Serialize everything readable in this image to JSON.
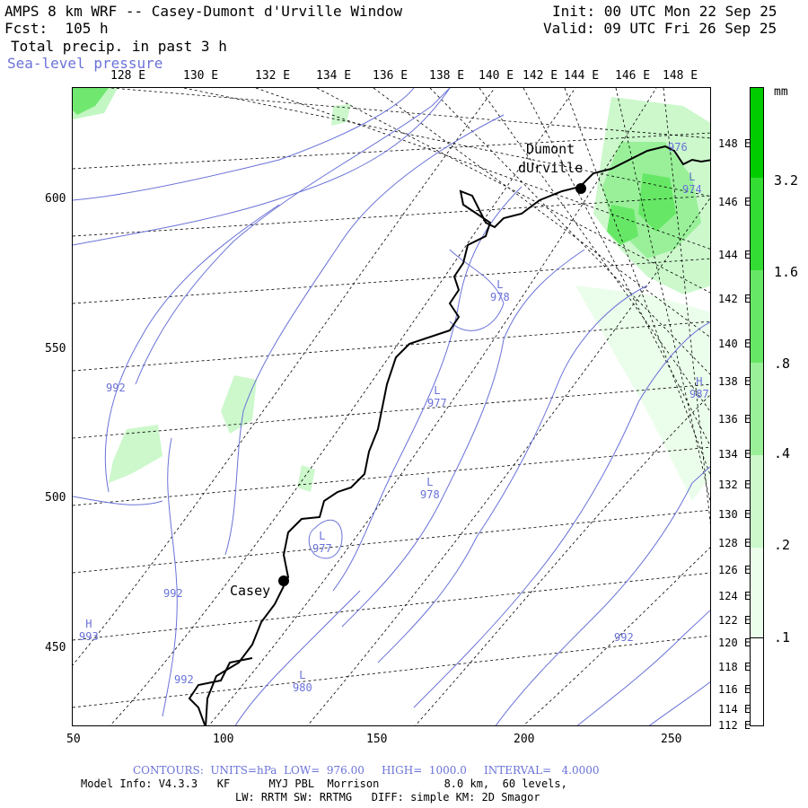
{
  "header": {
    "title": "AMPS 8 km WRF -- Casey-Dumont d'Urville Window",
    "forecast": "Fcst:  105 h",
    "field": "Total precip. in past 3 h",
    "contour_field": "Sea-level pressure",
    "init": "Init: 00 UTC Mon 22 Sep 25",
    "valid": "Valid: 09 UTC Fri 26 Sep 25"
  },
  "top_lon_labels": [
    "128 E",
    "130 E",
    "132 E",
    "134 E",
    "136 E",
    "138 E",
    "140 E",
    "142 E",
    "144 E",
    "146 E",
    "148 E"
  ],
  "right_lon_labels": [
    "148 E",
    "146 E",
    "144 E",
    "142 E",
    "140 E",
    "138 E",
    "136 E",
    "134 E",
    "132 E",
    "130 E",
    "128 E",
    "126 E",
    "124 E",
    "122 E",
    "120 E",
    "118 E",
    "116 E",
    "114 E",
    "112 E"
  ],
  "x_axis_labels": [
    "50",
    "100",
    "150",
    "200",
    "250"
  ],
  "y_axis_labels": [
    "600",
    "550",
    "500",
    "450"
  ],
  "colorbar": {
    "unit": "mm",
    "labels": [
      "3.2",
      "1.6",
      ".8",
      ".4",
      ".2",
      ".1"
    ],
    "colors": [
      "#00cc00",
      "#33dd33",
      "#66e866",
      "#99f099",
      "#ccf8cc",
      "#ebfdeb"
    ]
  },
  "stations": [
    {
      "name_lines": [
        "Dumont",
        "dUrville"
      ]
    },
    {
      "name_lines": [
        "Casey"
      ]
    }
  ],
  "pressure_labels": [
    {
      "letter": "L",
      "value": "978"
    },
    {
      "letter": "L",
      "value": "977"
    },
    {
      "letter": "L",
      "value": "978"
    },
    {
      "letter": "L",
      "value": "977"
    },
    {
      "letter": "L",
      "value": "980"
    },
    {
      "letter": "H",
      "value": "993"
    },
    {
      "letter": "H",
      "value": "987"
    },
    {
      "letter": "",
      "value": "992"
    },
    {
      "letter": "",
      "value": "992"
    },
    {
      "letter": "",
      "value": "992"
    },
    {
      "letter": "",
      "value": "992"
    },
    {
      "letter": "",
      "value": "976"
    },
    {
      "letter": "L",
      "value": "974"
    }
  ],
  "footer": {
    "contours": "CONTOURS:  UNITS=hPa  LOW=  976.00     HIGH=  1000.0     INTERVAL=   4.0000",
    "model_info": "Model Info: V4.3.3   KF      MYJ PBL  Morrison          8.0 km,  60 levels,",
    "physics": "LW: RRTM SW: RRTMG   DIFF: simple KM: 2D Smagor"
  },
  "colors": {
    "contour_blue": "#6a72d8",
    "precip_green": "#33dd33"
  }
}
